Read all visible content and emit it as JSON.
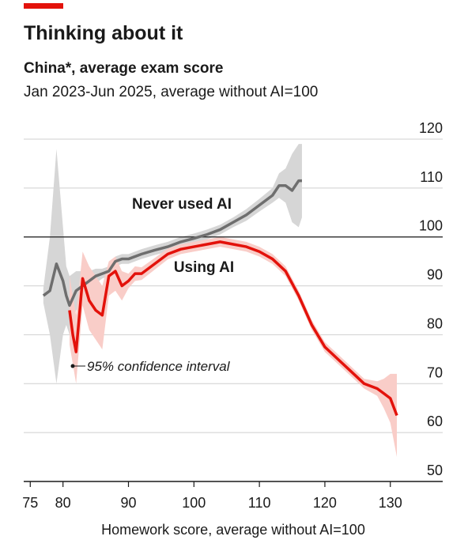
{
  "chart_data": {
    "type": "line",
    "title": "Thinking about it",
    "subtitle": "China*, average exam score",
    "subtitle2": "Jan 2023-Jun 2025, average without AI=100",
    "x_label": "Homework score, average without AI=100",
    "xlim": [
      74,
      138
    ],
    "ylim": [
      50,
      120
    ],
    "xticks": [
      75,
      80,
      90,
      100,
      110,
      120,
      130
    ],
    "yticks": [
      50,
      60,
      70,
      80,
      90,
      100,
      110,
      120
    ],
    "grid": true,
    "reference_line": 100,
    "annotations": [
      "95% confidence interval"
    ],
    "series": [
      {
        "name": "Never used AI",
        "color": "#6e6e6e",
        "ci_color": "#d6d6d6",
        "x": [
          77,
          78,
          79,
          80,
          80.5,
          81,
          82,
          83,
          84,
          85,
          86,
          87,
          88,
          89,
          90,
          92,
          94,
          96,
          98,
          100,
          102,
          104,
          106,
          108,
          110,
          112,
          113,
          114,
          115,
          116,
          116.5
        ],
        "values": [
          88,
          89,
          94.5,
          91,
          88,
          86,
          89,
          90,
          91,
          92,
          92.5,
          93,
          95,
          95.5,
          95.5,
          96.5,
          97.3,
          98,
          99,
          99.7,
          100.5,
          101.5,
          103,
          104.5,
          106.5,
          108.5,
          110.5,
          110.5,
          109.5,
          111.5,
          111.5
        ],
        "ci_lower": [
          86.5,
          80,
          70,
          80,
          82,
          80,
          85,
          87,
          89,
          90.5,
          91.5,
          92,
          94,
          94.5,
          94.5,
          95.5,
          96.3,
          97,
          98,
          98.7,
          99.5,
          100.5,
          102,
          103.3,
          105.2,
          107,
          108,
          107,
          103,
          102,
          104
        ],
        "ci_upper": [
          89.5,
          100,
          118,
          102,
          94,
          92,
          93,
          93,
          93,
          93.5,
          93.5,
          94,
          96,
          96.5,
          96.5,
          97.5,
          98.3,
          99,
          100,
          100.7,
          101.5,
          102.5,
          104,
          105.7,
          107.8,
          110,
          113,
          114,
          117,
          119,
          119
        ]
      },
      {
        "name": "Using AI",
        "color": "#e3120b",
        "ci_color": "#f9cdc8",
        "x": [
          81,
          81.5,
          82,
          83,
          84,
          85,
          86,
          87,
          88,
          89,
          90,
          91,
          92,
          94,
          96,
          98,
          100,
          102,
          104,
          106,
          108,
          110,
          112,
          114,
          116,
          118,
          120,
          122,
          124,
          126,
          128,
          129,
          130,
          131
        ],
        "values": [
          85,
          80,
          76.5,
          91.5,
          87,
          85,
          84,
          92,
          93,
          90,
          91,
          92.5,
          92.5,
          94.5,
          96.5,
          97.5,
          98,
          98.5,
          99,
          98.5,
          98,
          97,
          95.5,
          93,
          88,
          82,
          77.5,
          75,
          72.5,
          70,
          69,
          68,
          67,
          63.5
        ],
        "ci_lower": [
          78,
          74,
          70,
          86,
          81,
          79,
          77,
          88,
          89,
          87,
          89.5,
          91,
          91.2,
          93.3,
          95.4,
          96.5,
          97,
          97.5,
          98,
          97.5,
          97,
          96,
          94.5,
          92,
          87,
          81,
          76.5,
          74,
          71.5,
          69,
          67.5,
          65,
          62,
          55
        ],
        "ci_upper": [
          92,
          88,
          84,
          97,
          94,
          92,
          90,
          95,
          96,
          93,
          92.5,
          94,
          93.8,
          95.7,
          97.6,
          98.5,
          99,
          99.5,
          100,
          99.5,
          99,
          98,
          96.5,
          94,
          89,
          83,
          78.5,
          76,
          73.5,
          71,
          70.5,
          71,
          72,
          72
        ]
      }
    ]
  }
}
